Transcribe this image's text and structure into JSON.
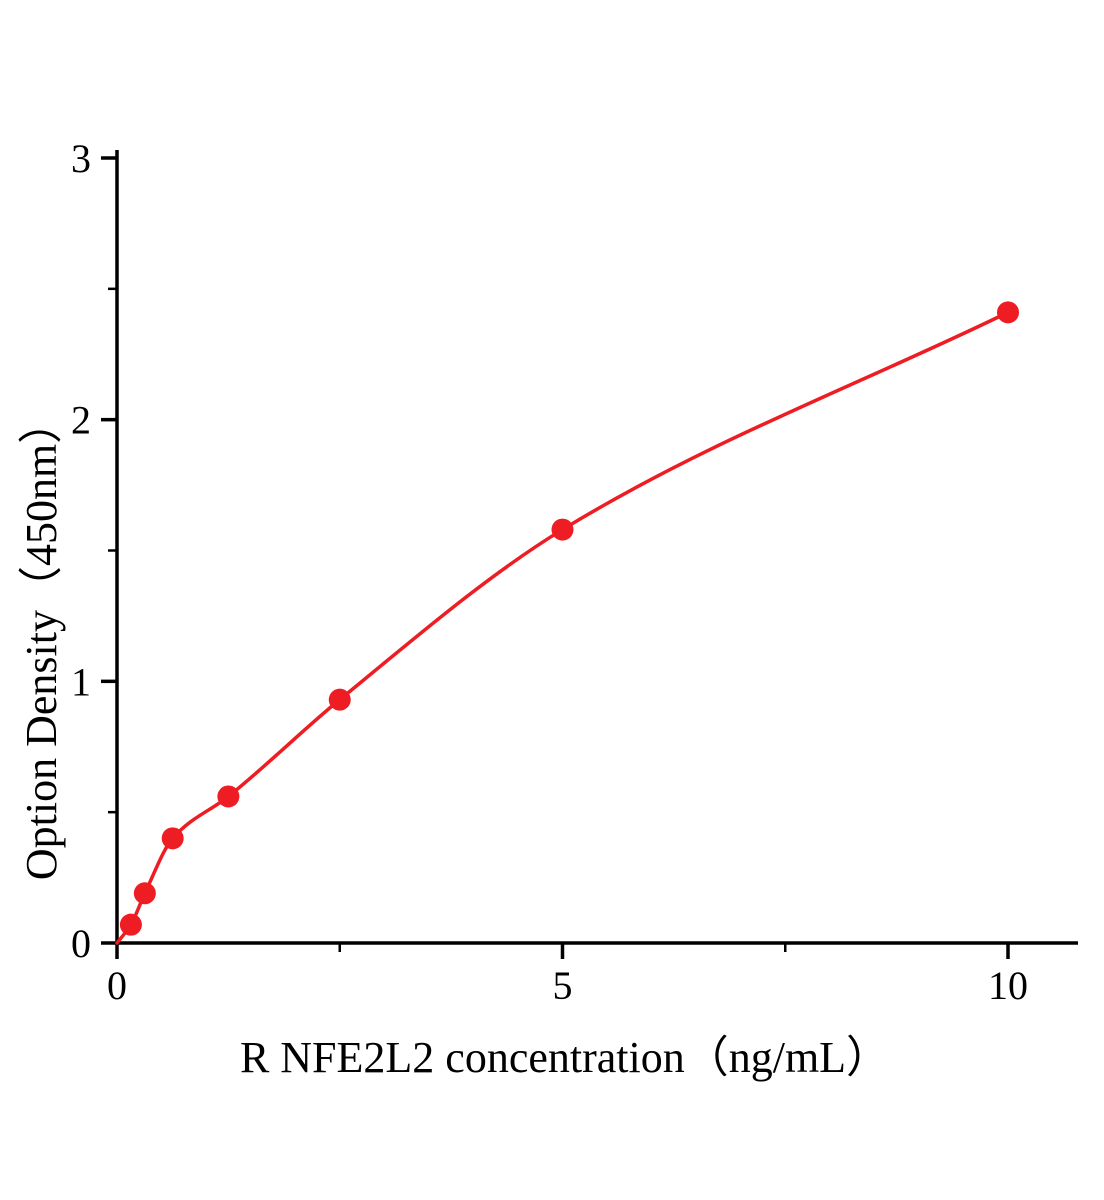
{
  "figure": {
    "kind": "elisa-standard-curve",
    "background_color": "#ffffff"
  },
  "chart_data": {
    "type": "scatter",
    "title": "",
    "xlabel": "R NFE2L2 concentration（ng/mL）",
    "ylabel": "Option Density（450nm）",
    "x": [
      0.156,
      0.3125,
      0.625,
      1.25,
      2.5,
      5,
      10
    ],
    "y": [
      0.07,
      0.19,
      0.4,
      0.56,
      0.93,
      1.58,
      2.41
    ],
    "fit_curve": {
      "style": "smooth",
      "starts_at_origin": true
    },
    "xlim": [
      0,
      10.8
    ],
    "ylim": [
      0,
      3
    ],
    "x_major_ticks": [
      0,
      5,
      10
    ],
    "x_minor_ticks": [
      2.5,
      7.5
    ],
    "y_major_ticks": [
      0,
      1,
      2,
      3
    ],
    "y_minor_ticks": [
      0.5,
      1.5,
      2.5
    ],
    "grid": false,
    "legend_position": "none",
    "point_color": "#ee1c23",
    "line_color": "#ee1c23",
    "axis_color": "#000000",
    "marker_radius": 11
  }
}
